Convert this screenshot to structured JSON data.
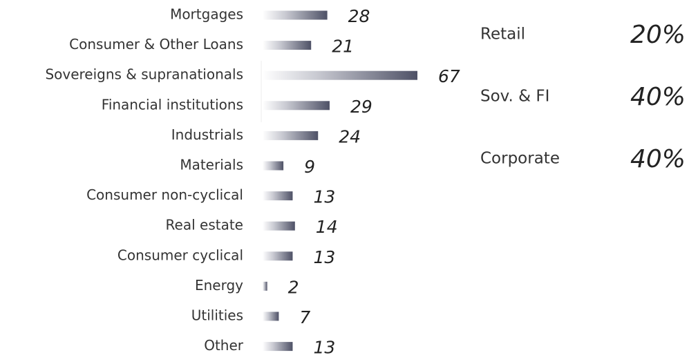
{
  "chart_data": {
    "type": "bar",
    "orientation": "horizontal",
    "categories": [
      "Mortgages",
      "Consumer & Other Loans",
      "Sovereigns & supranationals",
      "Financial institutions",
      "Industrials",
      "Materials",
      "Consumer non-cyclical",
      "Real estate",
      "Consumer cyclical",
      "Energy",
      "Utilities",
      "Other"
    ],
    "values": [
      28,
      21,
      67,
      29,
      24,
      9,
      13,
      14,
      13,
      2,
      7,
      13
    ],
    "color": "#5c5f73",
    "groups": {
      "categories": [
        "Retail",
        "Sov. & FI",
        "Corporate"
      ],
      "values": [
        20,
        40,
        40
      ],
      "value_labels": [
        "20%",
        "40%",
        "40%"
      ]
    }
  }
}
